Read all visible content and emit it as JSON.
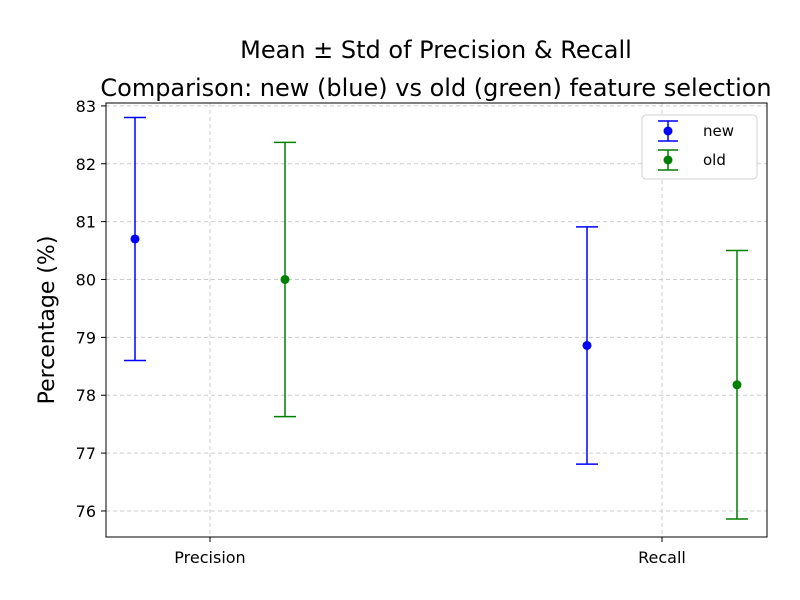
{
  "chart_data": {
    "type": "scatter",
    "title": "Mean ± Std of Precision & Recall",
    "subtitle": "Comparison: new (blue) vs old (green) feature selection",
    "ylabel": "Percentage (%)",
    "xlabel": "",
    "categories": [
      "Precision",
      "Recall"
    ],
    "ylim": [
      75.55,
      83.05
    ],
    "yticks": [
      76,
      77,
      78,
      79,
      80,
      81,
      82,
      83
    ],
    "grid": true,
    "legend_position": "top-right",
    "series": [
      {
        "name": "new",
        "color": "#0000ff",
        "means": [
          80.7,
          78.86
        ],
        "stds": [
          2.1,
          2.05
        ]
      },
      {
        "name": "old",
        "color": "#008000",
        "means": [
          80.0,
          78.18
        ],
        "stds": [
          2.37,
          2.32
        ]
      }
    ]
  }
}
